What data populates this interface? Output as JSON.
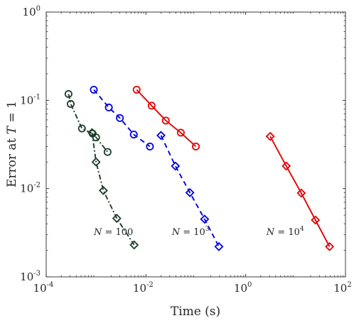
{
  "chart_data": {
    "type": "scatter",
    "xscale": "log",
    "yscale": "log",
    "xlim": [
      0.0001,
      100
    ],
    "ylim": [
      0.001,
      1
    ],
    "xlabel": "Time (s)",
    "ylabel": "Error at T = 1",
    "xticks": [
      {
        "value": 0.0001,
        "base": "10",
        "exp": "-4"
      },
      {
        "value": 0.01,
        "base": "10",
        "exp": "-2"
      },
      {
        "value": 1,
        "base": "10",
        "exp": "0"
      },
      {
        "value": 100,
        "base": "10",
        "exp": "2"
      }
    ],
    "yticks": [
      {
        "value": 0.001,
        "base": "10",
        "exp": "-3"
      },
      {
        "value": 0.01,
        "base": "10",
        "exp": "-2"
      },
      {
        "value": 0.1,
        "base": "10",
        "exp": "-1"
      },
      {
        "value": 1,
        "base": "10",
        "exp": "0"
      }
    ],
    "grid": false,
    "legend": "none",
    "series": [
      {
        "group": "N=100",
        "marker": "circle",
        "line": "dashdot",
        "color": "#1f3d2b",
        "points": [
          [
            0.00028,
            0.118
          ],
          [
            0.00031,
            0.091
          ],
          [
            0.00052,
            0.048
          ],
          [
            0.00085,
            0.042
          ],
          [
            0.001,
            0.038
          ],
          [
            0.0017,
            0.026
          ]
        ]
      },
      {
        "group": "N=100",
        "marker": "diamond",
        "line": "dashdot",
        "color": "#1f3d2b",
        "points": [
          [
            0.00083,
            0.043
          ],
          [
            0.001,
            0.02
          ],
          [
            0.0014,
            0.0095
          ],
          [
            0.0026,
            0.0046
          ],
          [
            0.0058,
            0.0023
          ]
        ]
      },
      {
        "group": "N=1e3",
        "marker": "circle",
        "line": "dashed",
        "color": "#0000e6",
        "points": [
          [
            0.0009,
            0.132
          ],
          [
            0.0018,
            0.083
          ],
          [
            0.003,
            0.063
          ],
          [
            0.0057,
            0.041
          ],
          [
            0.012,
            0.03
          ]
        ]
      },
      {
        "group": "N=1e3",
        "marker": "diamond",
        "line": "dashed",
        "color": "#0000e6",
        "points": [
          [
            0.02,
            0.04
          ],
          [
            0.039,
            0.018
          ],
          [
            0.076,
            0.009
          ],
          [
            0.15,
            0.0045
          ],
          [
            0.29,
            0.0022
          ]
        ]
      },
      {
        "group": "N=1e4",
        "marker": "circle",
        "line": "solid",
        "color": "#e60000",
        "points": [
          [
            0.0065,
            0.132
          ],
          [
            0.013,
            0.087
          ],
          [
            0.025,
            0.059
          ],
          [
            0.05,
            0.043
          ],
          [
            0.1,
            0.03
          ]
        ]
      },
      {
        "group": "N=1e4",
        "marker": "diamond",
        "line": "solid",
        "color": "#e60000",
        "points": [
          [
            3.1,
            0.039
          ],
          [
            6.5,
            0.018
          ],
          [
            13,
            0.0089
          ],
          [
            25,
            0.0044
          ],
          [
            48,
            0.0022
          ]
        ]
      }
    ],
    "annotations": [
      {
        "lhs": "N",
        "eq": " = ",
        "base": "100",
        "exp": "",
        "x": 0.0009,
        "y": 0.0032
      },
      {
        "lhs": "N",
        "eq": " = ",
        "base": "10",
        "exp": "3",
        "x": 0.033,
        "y": 0.0032
      },
      {
        "lhs": "N",
        "eq": " = ",
        "base": "10",
        "exp": "4",
        "x": 2.6,
        "y": 0.0032
      }
    ]
  }
}
